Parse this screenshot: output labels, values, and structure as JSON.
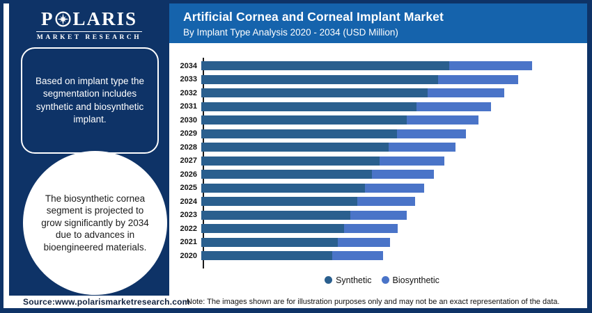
{
  "branding": {
    "logo_title_left": "P",
    "logo_title_right": "LARIS",
    "logo_subtitle": "MARKET RESEARCH"
  },
  "header": {
    "title": "Artificial Cornea and Corneal Implant Market",
    "subtitle": "By Implant Type Analysis 2020 - 2034 (USD Million)"
  },
  "sidebar": {
    "callout_box": "Based on implant type the segmentation includes synthetic and biosynthetic implant.",
    "callout_circle": "The biosynthetic cornea segment is projected to grow significantly by 2034 due to advances in bioengineered materials."
  },
  "chart_data": {
    "type": "bar",
    "orientation": "horizontal",
    "stacked": true,
    "title": "Artificial Cornea and Corneal Implant Market",
    "subtitle": "By Implant Type Analysis 2020 - 2034 (USD Million)",
    "ylabel": "Year",
    "xlabel": "USD Million (value axis unlabeled in figure)",
    "value_axis_visible": false,
    "grid": false,
    "legend_position": "bottom",
    "categories": [
      2020,
      2021,
      2022,
      2023,
      2024,
      2025,
      2026,
      2027,
      2028,
      2029,
      2030,
      2031,
      2032,
      2033,
      2034
    ],
    "series": [
      {
        "name": "Synthetic",
        "color": "#2a5f8e",
        "values": [
          188,
          196,
          205,
          214,
          224,
          235,
          245,
          256,
          269,
          281,
          295,
          309,
          325,
          340,
          356
        ]
      },
      {
        "name": "Biosynthetic",
        "color": "#4a74c8",
        "values": [
          73,
          75,
          77,
          81,
          83,
          85,
          89,
          93,
          96,
          99,
          103,
          107,
          110,
          115,
          119
        ]
      }
    ],
    "totals": [
      261,
      271,
      282,
      295,
      307,
      320,
      334,
      349,
      365,
      380,
      398,
      416,
      435,
      455,
      475
    ],
    "units_note": "Relative units estimated from bar lengths; figure shows no numeric axis"
  },
  "legend": {
    "synthetic": "Synthetic",
    "biosynthetic": "Biosynthetic"
  },
  "footer": {
    "source": "Source:www.polarismarketresearch.com",
    "note": "Note: The images shown are for illustration purposes only and may not be an exact representation of the data."
  },
  "colors": {
    "navy": "#0e3367",
    "header_blue": "#1563ac",
    "synthetic": "#2a5f8e",
    "biosynthetic": "#4a74c8"
  }
}
